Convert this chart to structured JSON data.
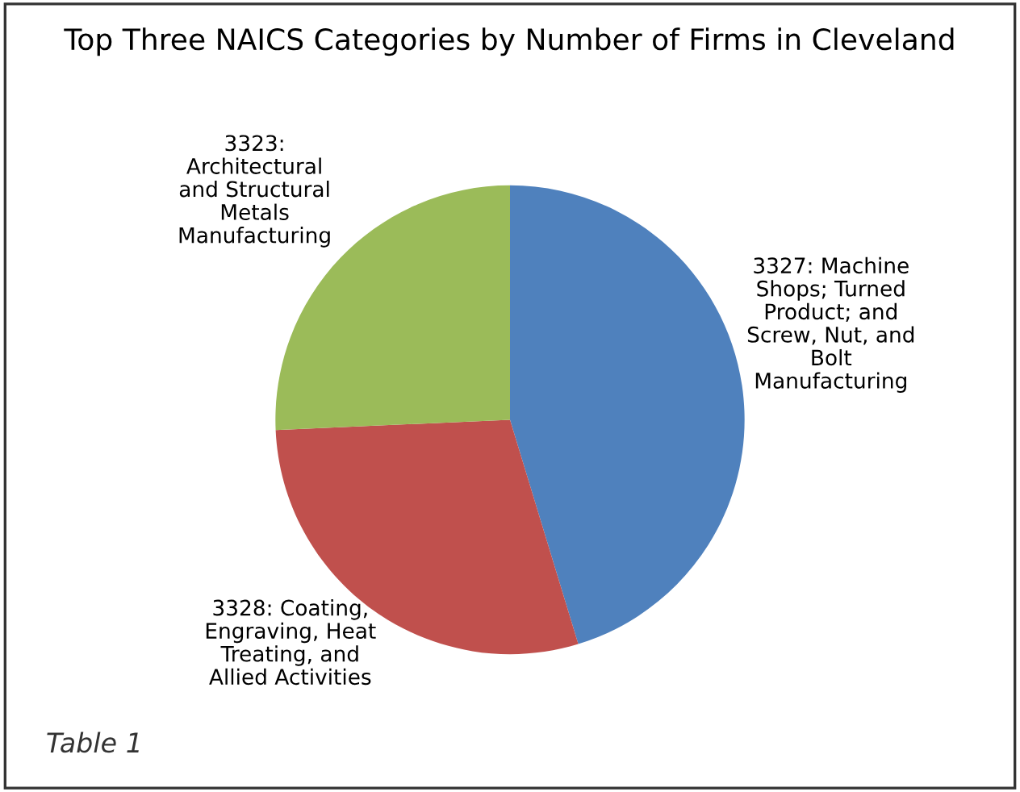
{
  "chart_data": {
    "type": "pie",
    "title": "Top Three NAICS Categories by Number of Firms in Cleveland",
    "categories": [
      "3327: Machine\nShops; Turned\nProduct; and\nScrew, Nut, and\nBolt\nManufacturing",
      "3328: Coating,\nEngraving, Heat\nTreating, and\nAllied Activities",
      "3323:\nArchitectural\nand Structural\nMetals\nManufacturing"
    ],
    "values": [
      45.3,
      29.0,
      25.7
    ],
    "colors": [
      "#4f81bd",
      "#c0504d",
      "#9bbb59"
    ],
    "annotations": [
      "Table 1"
    ]
  }
}
